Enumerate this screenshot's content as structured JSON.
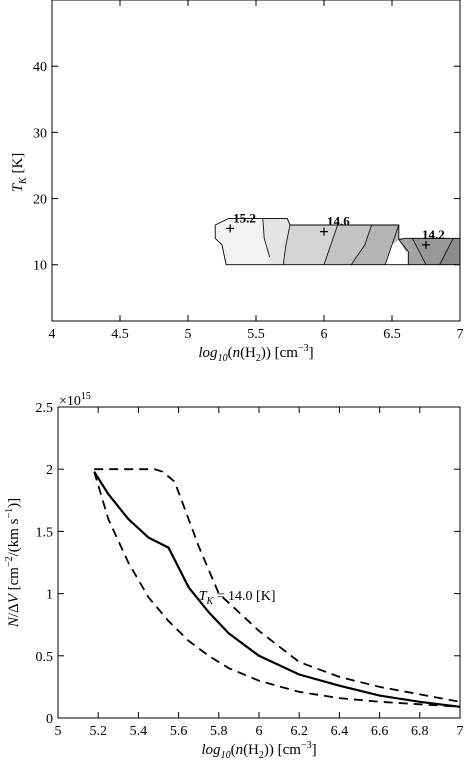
{
  "chart_data": [
    {
      "type": "contour",
      "xlabel": "log10(n(H2)) [cm^-3]",
      "ylabel": "T_K [K]",
      "xlim": [
        4,
        7
      ],
      "ylim": [
        1.5,
        50
      ],
      "xticks": [
        "4",
        "4.5",
        "5",
        "5.5",
        "6",
        "6.5",
        "7"
      ],
      "yticks": [
        "10",
        "20",
        "30",
        "40"
      ],
      "xtick_values": [
        4,
        4.5,
        5,
        5.5,
        6,
        6.5,
        7
      ],
      "ytick_values": [
        10,
        20,
        30,
        40
      ],
      "region_outline": [
        [
          5.2,
          10
        ],
        [
          6.62,
          10
        ],
        [
          6.62,
          12
        ],
        [
          6.6,
          14
        ],
        [
          7,
          14
        ],
        [
          7,
          10
        ],
        [
          6.62,
          10
        ],
        [
          6.6,
          12
        ],
        [
          6.55,
          13.8
        ],
        [
          6.55,
          16
        ],
        [
          5.75,
          16
        ],
        [
          5.73,
          17
        ],
        [
          5.3,
          17
        ],
        [
          5.2,
          16
        ],
        [
          5.2,
          14
        ],
        [
          5.25,
          13
        ],
        [
          5.28,
          10
        ]
      ],
      "contour_lines": [
        [
          [
            5.55,
            17
          ],
          [
            5.56,
            14
          ],
          [
            5.6,
            11.2
          ]
        ],
        [
          [
            5.75,
            16
          ],
          [
            5.72,
            13
          ],
          [
            5.7,
            10
          ]
        ],
        [
          [
            6.1,
            16
          ],
          [
            6.05,
            13
          ],
          [
            6.0,
            10
          ]
        ],
        [
          [
            6.35,
            16
          ],
          [
            6.3,
            13
          ],
          [
            6.2,
            10
          ]
        ],
        [
          [
            6.55,
            16
          ],
          [
            6.5,
            13
          ],
          [
            6.45,
            10
          ]
        ],
        [
          [
            6.65,
            14
          ],
          [
            6.7,
            12
          ],
          [
            6.75,
            10
          ]
        ],
        [
          [
            6.95,
            14
          ],
          [
            6.9,
            12
          ],
          [
            6.85,
            10
          ]
        ]
      ],
      "markers": [
        {
          "x": 5.31,
          "y": 15.5,
          "label": "15.2"
        },
        {
          "x": 6.0,
          "y": 15.0,
          "label": "14.6"
        },
        {
          "x": 6.75,
          "y": 13.0,
          "label": "14.2"
        }
      ],
      "grid": false
    },
    {
      "type": "line",
      "xlabel": "log10(n(H2)) [cm^-3]",
      "ylabel": "N/ΔV [cm^-2/(km s^-1)]",
      "y_scale_label": "×10^15",
      "xlim": [
        5,
        7
      ],
      "ylim": [
        0,
        2.5
      ],
      "xticks": [
        "5",
        "5.2",
        "5.4",
        "5.6",
        "5.8",
        "6",
        "6.2",
        "6.4",
        "6.6",
        "6.8",
        "7"
      ],
      "yticks": [
        "0",
        "0.5",
        "1",
        "1.5",
        "2",
        "2.5"
      ],
      "xtick_values": [
        5,
        5.2,
        5.4,
        5.6,
        5.8,
        6,
        6.2,
        6.4,
        6.6,
        6.8,
        7
      ],
      "ytick_values": [
        0,
        0.5,
        1,
        1.5,
        2,
        2.5
      ],
      "annotation": "T_K = 14.0 [K]",
      "annotation_at": [
        5.7,
        0.99
      ],
      "series": [
        {
          "style": "solid",
          "x": [
            5.18,
            5.25,
            5.35,
            5.45,
            5.55,
            5.65,
            5.75,
            5.85,
            6.0,
            6.2,
            6.4,
            6.6,
            6.8,
            7.0
          ],
          "y": [
            1.98,
            1.8,
            1.6,
            1.45,
            1.37,
            1.05,
            0.85,
            0.68,
            0.5,
            0.35,
            0.26,
            0.18,
            0.13,
            0.09
          ]
        },
        {
          "style": "dashed",
          "x": [
            5.18,
            5.3,
            5.4,
            5.48,
            5.52,
            5.58,
            5.7,
            5.8,
            6.0,
            6.2,
            6.4,
            6.6,
            6.8,
            7.0
          ],
          "y": [
            2.0,
            2.0,
            2.0,
            2.0,
            1.98,
            1.9,
            1.38,
            1.0,
            0.7,
            0.45,
            0.33,
            0.25,
            0.19,
            0.13
          ]
        },
        {
          "style": "dashed",
          "x": [
            5.18,
            5.25,
            5.35,
            5.45,
            5.55,
            5.65,
            5.75,
            5.85,
            6.0,
            6.2,
            6.4,
            6.6,
            6.8,
            7.0
          ],
          "y": [
            1.98,
            1.6,
            1.25,
            0.97,
            0.78,
            0.62,
            0.5,
            0.4,
            0.3,
            0.21,
            0.16,
            0.13,
            0.11,
            0.09
          ]
        }
      ],
      "grid": false
    }
  ]
}
